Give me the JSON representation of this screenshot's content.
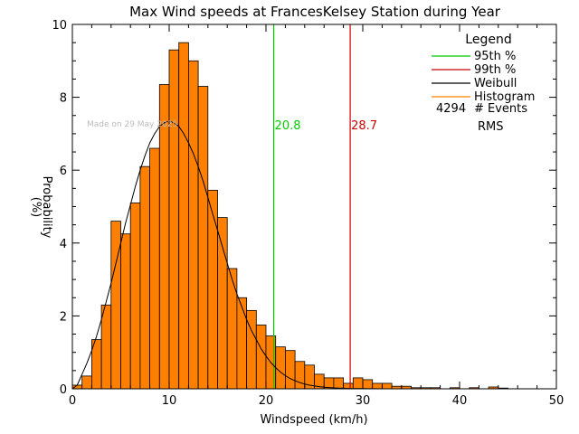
{
  "chart_data": {
    "type": "bar",
    "title": "Max Wind speeds at FrancesKelsey Station during Year",
    "xlabel": "Windspeed (km/h)",
    "ylabel": "Probability (%)",
    "xlim": [
      0,
      50
    ],
    "ylim": [
      0,
      10
    ],
    "x_ticks": [
      "0",
      "10",
      "20",
      "30",
      "40",
      "50"
    ],
    "y_ticks": [
      "0",
      "2",
      "4",
      "6",
      "8",
      "10"
    ],
    "watermark": "Made on 29 May 2025",
    "legend": {
      "title": "Legend",
      "entries": [
        {
          "label": "95th %",
          "color": "#00cc00"
        },
        {
          "label": "99th %",
          "color": "#cc0000"
        },
        {
          "label": "Weibull",
          "color": "#000000"
        },
        {
          "label": "Histogram",
          "color": "#ff8000"
        }
      ],
      "events_count": "4294",
      "events_label": "# Events",
      "rms_label": "RMS"
    },
    "percentile_lines": [
      {
        "name": "95th %",
        "x": 20.8,
        "label": "20.8",
        "color": "#00cc00"
      },
      {
        "name": "99th %",
        "x": 28.7,
        "label": "28.7",
        "color": "#cc0000"
      }
    ],
    "histogram": {
      "bin_width": 1,
      "bins_start": [
        0,
        1,
        2,
        3,
        4,
        5,
        6,
        7,
        8,
        9,
        10,
        11,
        12,
        13,
        14,
        15,
        16,
        17,
        18,
        19,
        20,
        21,
        22,
        23,
        24,
        25,
        26,
        27,
        28,
        29,
        30,
        31,
        32,
        33,
        34,
        35,
        36,
        37,
        38,
        39,
        40,
        41,
        42,
        43,
        44,
        45,
        46,
        47,
        48,
        49
      ],
      "values": [
        0.1,
        0.35,
        1.35,
        2.3,
        4.6,
        4.25,
        5.1,
        6.1,
        6.6,
        8.35,
        9.3,
        9.5,
        9.0,
        8.3,
        5.45,
        4.7,
        3.3,
        2.5,
        2.15,
        1.75,
        1.45,
        1.15,
        1.05,
        0.75,
        0.65,
        0.4,
        0.3,
        0.3,
        0.15,
        0.3,
        0.25,
        0.15,
        0.15,
        0.07,
        0.07,
        0.03,
        0.03,
        0.03,
        0.0,
        0.03,
        0.0,
        0.03,
        0.0,
        0.05,
        0.02,
        0.0,
        0.0,
        0.0,
        0.0,
        0.0
      ],
      "color": "#ff8000"
    },
    "weibull_curve": {
      "x": [
        0,
        0.5,
        1,
        1.5,
        2,
        2.5,
        3,
        3.5,
        4,
        4.5,
        5,
        5.5,
        6,
        6.5,
        7,
        7.5,
        8,
        8.5,
        9,
        9.5,
        10,
        10.5,
        11,
        11.5,
        12,
        12.5,
        13,
        13.5,
        14,
        14.5,
        15,
        15.5,
        16,
        16.5,
        17,
        17.5,
        18,
        18.5,
        19,
        19.5,
        20,
        20.5,
        21,
        21.5,
        22,
        22.5,
        23,
        23.5,
        24,
        24.5,
        25,
        25.5,
        26,
        26.5,
        27,
        27.5,
        28,
        28.5,
        29,
        29.5,
        30,
        30.5,
        31,
        31.5,
        32,
        32.5,
        33
      ],
      "y": [
        0.0,
        0.1,
        0.4,
        0.7,
        1.05,
        1.45,
        1.9,
        2.4,
        2.9,
        3.45,
        4.0,
        4.55,
        5.05,
        5.55,
        6.0,
        6.4,
        6.75,
        7.0,
        7.2,
        7.3,
        7.35,
        7.3,
        7.2,
        7.0,
        6.75,
        6.45,
        6.1,
        5.7,
        5.25,
        4.8,
        4.35,
        3.9,
        3.45,
        3.0,
        2.6,
        2.25,
        1.9,
        1.6,
        1.35,
        1.1,
        0.9,
        0.72,
        0.58,
        0.46,
        0.36,
        0.28,
        0.22,
        0.17,
        0.13,
        0.1,
        0.08,
        0.06,
        0.045,
        0.035,
        0.026,
        0.02,
        0.015,
        0.011,
        0.008,
        0.006,
        0.004,
        0.003,
        0.002,
        0.0015,
        0.001,
        0.0007,
        0.0005
      ],
      "color": "#000000"
    }
  }
}
